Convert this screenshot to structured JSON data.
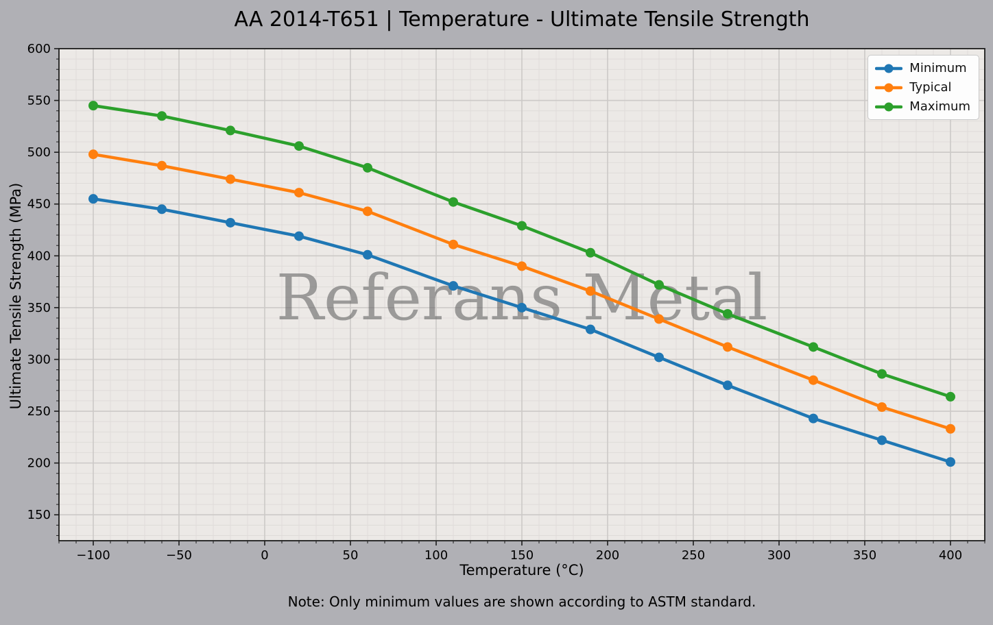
{
  "figure": {
    "title": "AA 2014-T651 | Temperature - Ultimate Tensile Strength",
    "note": "Note: Only minimum values are shown according to ASTM standard.",
    "watermark": "Referans Metal"
  },
  "chart_data": {
    "type": "line",
    "title": "AA 2014-T651 | Temperature - Ultimate Tensile Strength",
    "xlabel": "Temperature (°C)",
    "ylabel": "Ultimate Tensile Strength (MPa)",
    "x": [
      -100,
      -60,
      -20,
      20,
      60,
      110,
      150,
      190,
      230,
      270,
      320,
      360,
      400
    ],
    "series": [
      {
        "name": "Minimum",
        "color": "#1f77b4",
        "values": [
          455,
          445,
          432,
          419,
          401,
          371,
          350,
          329,
          302,
          275,
          243,
          222,
          201
        ]
      },
      {
        "name": "Typical",
        "color": "#ff7f0e",
        "values": [
          498,
          487,
          474,
          461,
          443,
          411,
          390,
          366,
          339,
          312,
          280,
          254,
          233
        ]
      },
      {
        "name": "Maximum",
        "color": "#2ca02c",
        "values": [
          545,
          535,
          521,
          506,
          485,
          452,
          429,
          403,
          372,
          344,
          312,
          286,
          264
        ]
      }
    ],
    "xlim": [
      -120,
      420
    ],
    "ylim": [
      125,
      600
    ],
    "x_major_ticks": [
      -100,
      -50,
      0,
      50,
      100,
      150,
      200,
      250,
      300,
      350,
      400
    ],
    "y_major_ticks": [
      150,
      200,
      250,
      300,
      350,
      400,
      450,
      500,
      550,
      600
    ],
    "minor_tick_step": 10,
    "grid": "major+minor",
    "legend": {
      "position": "upper right",
      "entries": [
        "Minimum",
        "Typical",
        "Maximum"
      ]
    },
    "colors": {
      "figure_background": "#b0b0b5",
      "plot_background": "#ece9e6",
      "grid_major": "#ccc9c7",
      "grid_minor": "#dfdcd9",
      "spine": "#1b1b1b",
      "tick": "#1b1b1b",
      "text": "#000000",
      "watermark": "#696969",
      "legend_background": "#fdfdfd",
      "legend_border": "#c9c9c9"
    }
  }
}
